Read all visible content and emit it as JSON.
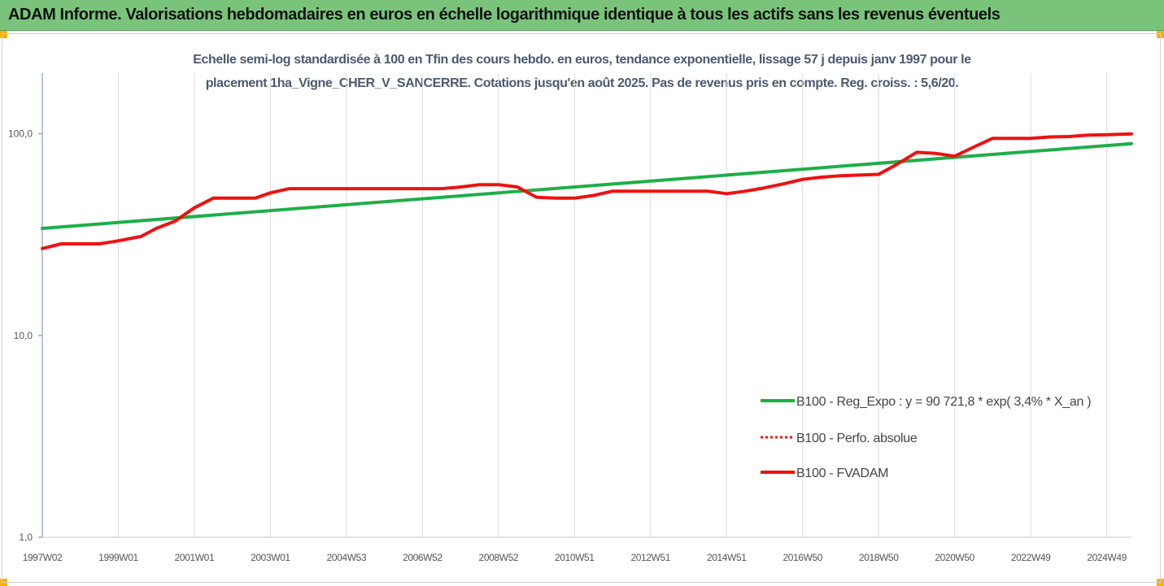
{
  "header": {
    "title": "ADAM Informe. Valorisations hebdomadaires en euros en échelle logarithmique identique à tous les actifs sans les revenus éventuels"
  },
  "chart_data": {
    "type": "line",
    "title_lines": [
      "Echelle semi-log standardisée à 100 en Tfin des cours hebdo. en euros, tendance exponentielle, lissage 57 j depuis janv 1997 pour le",
      "placement 1ha_Vigne_CHER_V_SANCERRE. Cotations jusqu'en août 2025. Pas de revenus pris en compte. Reg. croiss. : 5,6/20."
    ],
    "y_scale": "log",
    "ylim": [
      1,
      200
    ],
    "y_ticks": [
      1,
      10,
      100
    ],
    "y_tick_labels": [
      "1,0",
      "10,0",
      "100,0"
    ],
    "x_range": [
      1997.0,
      2025.65
    ],
    "x_ticks": [
      1997.0,
      1999.0,
      2001.0,
      2003.0,
      2005.0,
      2007.0,
      2009.0,
      2011.0,
      2013.0,
      2015.0,
      2017.0,
      2019.0,
      2021.0,
      2023.0,
      2025.0
    ],
    "x_tick_labels": [
      "1997W02",
      "1999W01",
      "2001W01",
      "2003W01",
      "2004W53",
      "2006W52",
      "2008W52",
      "2010W51",
      "2012W51",
      "2014W51",
      "2016W50",
      "2018W50",
      "2020W50",
      "2022W49",
      "2024W49"
    ],
    "grid": "vertical",
    "legend_position": "bottom-right",
    "series": [
      {
        "name": "B100 - Reg_Expo : y = 90 721,8 * exp( 3,4% *  X_an )",
        "style": "solid",
        "color": "#1fae48",
        "x": [
          1997.0,
          2025.65
        ],
        "y": [
          34.0,
          89.5
        ]
      },
      {
        "name": "B100 - Perfo. absolue",
        "style": "dotted",
        "color": "#ee1111",
        "x": [
          1997.0,
          1997.5,
          1998.0,
          1998.5,
          1999.0,
          1999.6,
          2000.0,
          2000.5,
          2001.0,
          2001.5,
          2002.0,
          2002.6,
          2003.0,
          2003.5,
          2004.0,
          2005.0,
          2006.0,
          2007.0,
          2007.5,
          2008.0,
          2008.5,
          2009.0,
          2009.5,
          2010.0,
          2010.5,
          2011.0,
          2011.5,
          2012.0,
          2013.0,
          2014.0,
          2014.5,
          2015.0,
          2015.5,
          2016.0,
          2016.5,
          2017.0,
          2017.5,
          2018.0,
          2018.5,
          2019.0,
          2019.5,
          2020.0,
          2020.5,
          2021.0,
          2021.5,
          2022.0,
          2022.5,
          2023.0,
          2023.5,
          2024.0,
          2024.5,
          2025.0,
          2025.65
        ],
        "y": [
          27.0,
          28.5,
          28.5,
          28.5,
          29.5,
          31.0,
          34.0,
          37.0,
          43.0,
          48.0,
          48.0,
          48.0,
          51.0,
          53.5,
          53.5,
          53.5,
          53.5,
          53.5,
          53.5,
          54.5,
          56.0,
          56.0,
          54.5,
          48.5,
          48.0,
          48.0,
          49.5,
          52.0,
          52.0,
          52.0,
          52.0,
          50.5,
          52.0,
          54.0,
          56.5,
          59.5,
          61.0,
          62.0,
          62.5,
          63.0,
          71.0,
          81.0,
          80.0,
          77.5,
          86.0,
          95.0,
          95.0,
          95.0,
          96.5,
          97.0,
          98.5,
          99.0,
          100.0
        ]
      },
      {
        "name": "B100 - FVADAM",
        "style": "solid",
        "color": "#ee1111",
        "x": [
          1997.0,
          1997.5,
          1998.0,
          1998.5,
          1999.0,
          1999.6,
          2000.0,
          2000.5,
          2001.0,
          2001.5,
          2002.0,
          2002.6,
          2003.0,
          2003.5,
          2004.0,
          2005.0,
          2006.0,
          2007.0,
          2007.5,
          2008.0,
          2008.5,
          2009.0,
          2009.5,
          2010.0,
          2010.5,
          2011.0,
          2011.5,
          2012.0,
          2013.0,
          2014.0,
          2014.5,
          2015.0,
          2015.5,
          2016.0,
          2016.5,
          2017.0,
          2017.5,
          2018.0,
          2018.5,
          2019.0,
          2019.5,
          2020.0,
          2020.5,
          2021.0,
          2021.5,
          2022.0,
          2022.5,
          2023.0,
          2023.5,
          2024.0,
          2024.5,
          2025.0,
          2025.65
        ],
        "y": [
          27.0,
          28.5,
          28.5,
          28.5,
          29.5,
          31.0,
          34.0,
          37.0,
          43.0,
          48.0,
          48.0,
          48.0,
          51.0,
          53.5,
          53.5,
          53.5,
          53.5,
          53.5,
          53.5,
          54.5,
          56.0,
          56.0,
          54.5,
          48.5,
          48.0,
          48.0,
          49.5,
          52.0,
          52.0,
          52.0,
          52.0,
          50.5,
          52.0,
          54.0,
          56.5,
          59.5,
          61.0,
          62.0,
          62.5,
          63.0,
          71.0,
          81.0,
          80.0,
          77.5,
          86.0,
          95.0,
          95.0,
          95.0,
          96.5,
          97.0,
          98.5,
          99.0,
          100.0
        ]
      }
    ]
  },
  "colors": {
    "banner": "#79c47a",
    "corner_accent": "#f5b400",
    "subtitle": "#4a5a6e"
  }
}
